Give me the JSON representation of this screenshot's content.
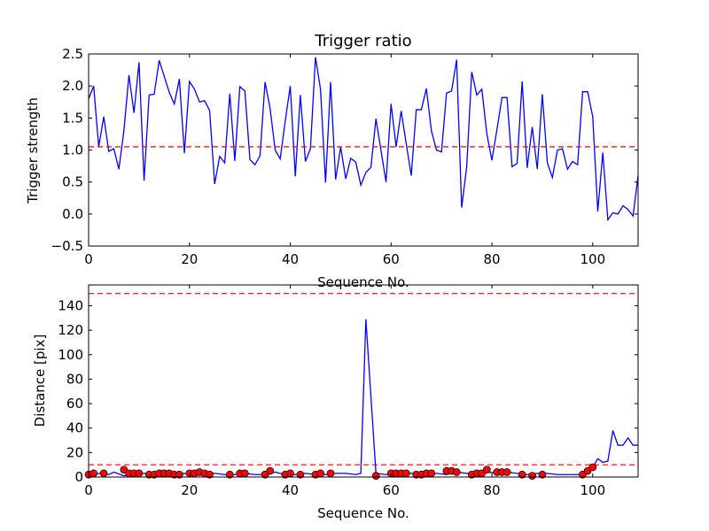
{
  "chart_data": [
    {
      "type": "line",
      "title": "Trigger ratio",
      "xlabel": "Sequence No.",
      "ylabel": "Trigger strength",
      "xlim": [
        0,
        109
      ],
      "ylim": [
        -0.5,
        2.5
      ],
      "xticks": [
        "0",
        "20",
        "40",
        "60",
        "80",
        "100"
      ],
      "yticks": [
        "−0.5",
        "0.0",
        "0.5",
        "1.0",
        "1.5",
        "2.0",
        "2.5"
      ],
      "line_color": "#0000ff",
      "threshold": 1.05,
      "threshold_color": "#ff0000",
      "series": [
        {
          "values": [
            1.8,
            2.0,
            1.05,
            1.52,
            0.98,
            1.02,
            0.7,
            1.3,
            2.17,
            1.58,
            2.37,
            0.52,
            1.86,
            1.87,
            2.4,
            2.15,
            1.9,
            1.72,
            2.11,
            0.95,
            2.07,
            1.95,
            1.75,
            1.77,
            1.62,
            0.47,
            0.9,
            0.8,
            1.88,
            0.83,
            1.99,
            1.92,
            0.85,
            0.77,
            0.91,
            2.06,
            1.65,
            1.0,
            0.86,
            1.45,
            2.0,
            0.59,
            1.86,
            0.82,
            1.02,
            2.45,
            1.95,
            0.49,
            2.06,
            0.54,
            1.05,
            0.55,
            0.87,
            0.81,
            0.45,
            0.65,
            0.73,
            1.49,
            0.99,
            0.5,
            1.72,
            1.05,
            1.61,
            1.1,
            0.6,
            1.63,
            1.63,
            1.96,
            1.3,
            1.0,
            0.97,
            1.89,
            1.92,
            2.41,
            0.1,
            0.74,
            2.22,
            1.86,
            1.95,
            1.25,
            0.84,
            1.32,
            1.82,
            1.82,
            0.74,
            0.79,
            2.07,
            0.72,
            1.36,
            0.7,
            1.87,
            0.8,
            0.57,
            1.0,
            1.02,
            0.7,
            0.82,
            0.77,
            1.91,
            1.91,
            1.52,
            0.04,
            0.96,
            -0.09,
            0.02,
            0.0,
            0.13,
            0.07,
            -0.03,
            0.6
          ]
        }
      ]
    },
    {
      "type": "line",
      "title": "",
      "xlabel": "Sequence No.",
      "ylabel": "Distance [pix]",
      "xlim": [
        0,
        109
      ],
      "ylim": [
        0,
        157
      ],
      "xticks": [
        "0",
        "20",
        "40",
        "60",
        "80",
        "100"
      ],
      "yticks": [
        "0",
        "20",
        "40",
        "60",
        "80",
        "100",
        "120",
        "140"
      ],
      "line_color": "#0000ff",
      "marker_color": "#ff0000",
      "thresholds": [
        10,
        150
      ],
      "threshold_color": "#ff0000",
      "series": [
        {
          "x": [
            0,
            2,
            4,
            5,
            7,
            9,
            11,
            13,
            15,
            17,
            19,
            21,
            23,
            25,
            27,
            29,
            31,
            33,
            35,
            37,
            39,
            41,
            43,
            45,
            47,
            49,
            51,
            53,
            54,
            55,
            57,
            59,
            61,
            63,
            65,
            67,
            69,
            71,
            73,
            75,
            77,
            79,
            81,
            83,
            85,
            87,
            89,
            91,
            93,
            95,
            97,
            99,
            100,
            101,
            102,
            103,
            104,
            105,
            106,
            107,
            108,
            109
          ],
          "y": [
            2,
            3,
            2,
            4,
            1,
            2,
            3,
            2,
            3,
            2,
            3,
            2,
            4,
            3,
            2,
            2,
            3,
            2,
            2,
            4,
            2,
            2,
            3,
            2,
            2,
            3,
            3,
            2,
            3,
            129,
            3,
            2,
            2,
            3,
            3,
            2,
            3,
            2,
            4,
            3,
            2,
            4,
            3,
            4,
            3,
            2,
            3,
            3,
            2,
            2,
            2,
            3,
            8,
            15,
            12,
            13,
            38,
            26,
            26,
            32,
            26,
            26
          ]
        }
      ],
      "markers": {
        "x": [
          0,
          1,
          3,
          7,
          8,
          9,
          10,
          12,
          13,
          14,
          15,
          16,
          17,
          18,
          20,
          21,
          22,
          23,
          24,
          28,
          30,
          31,
          35,
          36,
          39,
          40,
          42,
          45,
          46,
          48,
          57,
          60,
          61,
          62,
          63,
          65,
          66,
          67,
          68,
          71,
          72,
          73,
          76,
          77,
          78,
          79,
          81,
          82,
          83,
          86,
          88,
          90,
          98,
          99,
          100
        ],
        "y": [
          2,
          3,
          3,
          6,
          3,
          3,
          3,
          2,
          2,
          3,
          3,
          3,
          2,
          2,
          3,
          3,
          4,
          3,
          2,
          2,
          3,
          3,
          2,
          5,
          2,
          3,
          2,
          2,
          3,
          3,
          1,
          3,
          3,
          3,
          3,
          2,
          2,
          3,
          3,
          5,
          5,
          4,
          2,
          3,
          3,
          6,
          4,
          4,
          4,
          2,
          1,
          2,
          2,
          5,
          8
        ]
      }
    }
  ]
}
